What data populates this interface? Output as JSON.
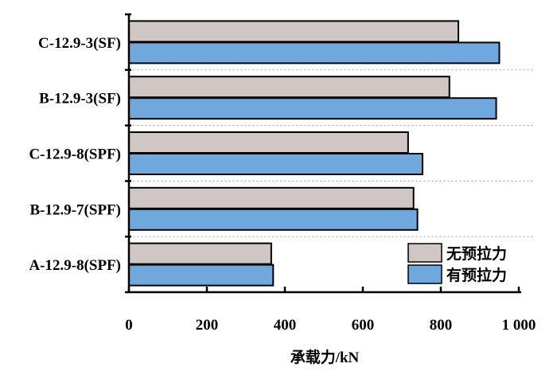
{
  "chart_data": {
    "type": "bar",
    "orientation": "horizontal",
    "categories": [
      "C-12.9-3(SF)",
      "B-12.9-3(SF)",
      "C-12.9-8(SPF)",
      "B-12.9-7(SPF)",
      "A-12.9-8(SPF)"
    ],
    "series": [
      {
        "name": "无预拉力",
        "color": "#d0c7c4",
        "values": [
          845,
          822,
          716,
          730,
          365
        ]
      },
      {
        "name": "有预拉力",
        "color": "#6fa8dc",
        "values": [
          950,
          942,
          753,
          740,
          370
        ]
      }
    ],
    "xlabel": "承载力/kN",
    "ylabel": "",
    "xlim": [
      0,
      1000
    ],
    "x_ticks": [
      0,
      200,
      400,
      600,
      800,
      1000
    ],
    "x_tick_labels": [
      "0",
      "200",
      "400",
      "600",
      "800",
      "1 000"
    ],
    "grid": "dashed separators between groups",
    "legend_position": "bottom-right",
    "bar_edge_color": "#000000"
  }
}
